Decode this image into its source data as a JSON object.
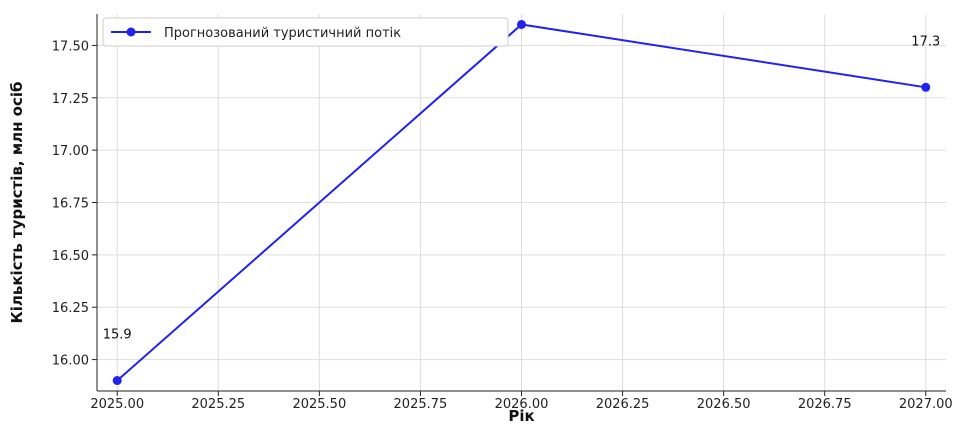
{
  "chart_data": {
    "type": "line",
    "xlabel": "Рік",
    "ylabel": "Кількість туристів, млн осіб",
    "xlim": [
      2024.95,
      2027.05
    ],
    "ylim": [
      15.85,
      17.65
    ],
    "x_ticks": [
      2025.0,
      2025.25,
      2025.5,
      2025.75,
      2026.0,
      2026.25,
      2026.5,
      2026.75,
      2027.0
    ],
    "x_tick_labels": [
      "2025.00",
      "2025.25",
      "2025.50",
      "2025.75",
      "2026.00",
      "2026.25",
      "2026.50",
      "2026.75",
      "2027.00"
    ],
    "y_ticks": [
      16.0,
      16.25,
      16.5,
      16.75,
      17.0,
      17.25,
      17.5
    ],
    "y_tick_labels": [
      "16.00",
      "16.25",
      "16.50",
      "16.75",
      "17.00",
      "17.25",
      "17.50"
    ],
    "grid": true,
    "legend_position": "top-left",
    "series": [
      {
        "name": "Прогнозований туристичний потік",
        "color": "#2222ee",
        "marker": "circle",
        "x": [
          2025,
          2026,
          2027
        ],
        "y": [
          15.9,
          17.6,
          17.3
        ]
      }
    ],
    "annotations": [
      {
        "x": 2025,
        "y": 15.9,
        "text": "15.9"
      },
      {
        "x": 2027,
        "y": 17.3,
        "text": "17.3"
      }
    ]
  }
}
